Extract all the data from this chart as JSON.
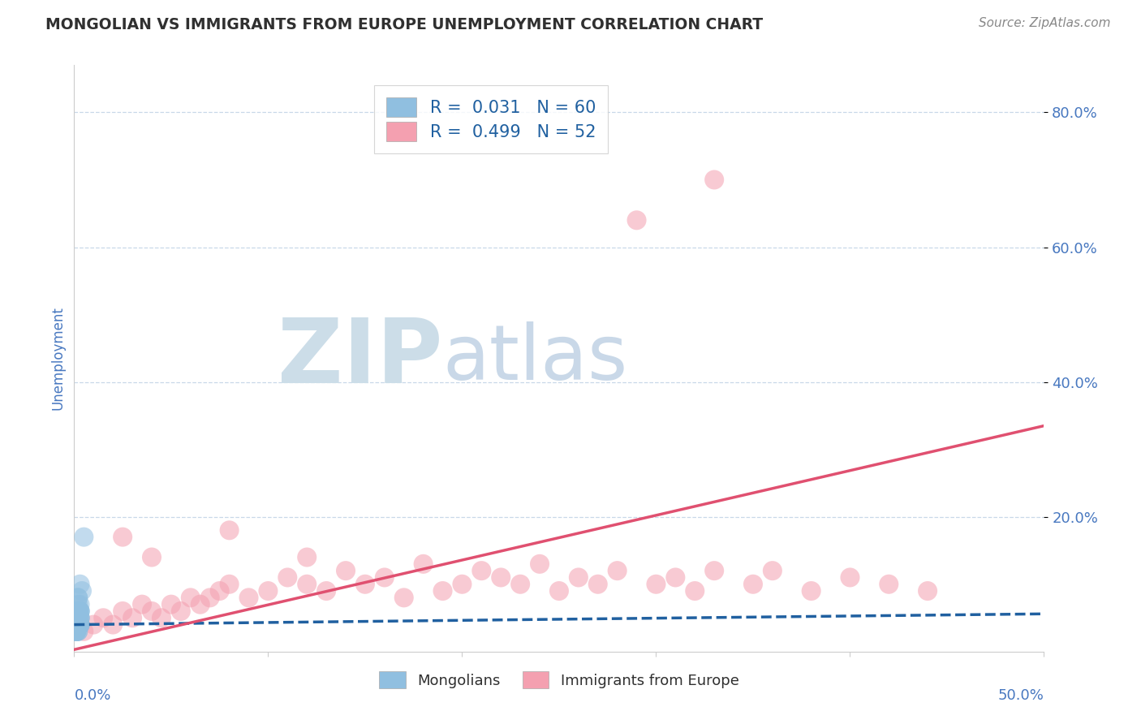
{
  "title": "MONGOLIAN VS IMMIGRANTS FROM EUROPE UNEMPLOYMENT CORRELATION CHART",
  "source": "Source: ZipAtlas.com",
  "ylabel": "Unemployment",
  "xlim": [
    0.0,
    0.5
  ],
  "ylim": [
    0.0,
    0.87
  ],
  "y_tick_values": [
    0.2,
    0.4,
    0.6,
    0.8
  ],
  "mongolian_color": "#90bfe0",
  "europe_color": "#f4a0b0",
  "mongolian_line_color": "#2060a0",
  "europe_line_color": "#e05070",
  "bg_color": "#ffffff",
  "grid_color": "#c8d8e8",
  "watermark_color": "#ccdde8",
  "title_color": "#303030",
  "axis_color": "#4878c0",
  "source_color": "#888888",
  "legend_text_color": "#2060a0",
  "mongolian_x": [
    0.001,
    0.002,
    0.001,
    0.003,
    0.001,
    0.002,
    0.001,
    0.002,
    0.003,
    0.001,
    0.002,
    0.001,
    0.002,
    0.003,
    0.001,
    0.002,
    0.001,
    0.003,
    0.002,
    0.001,
    0.002,
    0.001,
    0.002,
    0.003,
    0.001,
    0.002,
    0.001,
    0.002,
    0.001,
    0.002,
    0.003,
    0.001,
    0.002,
    0.001,
    0.003,
    0.002,
    0.001,
    0.002,
    0.003,
    0.001,
    0.002,
    0.001,
    0.003,
    0.002,
    0.001,
    0.002,
    0.001,
    0.003,
    0.002,
    0.001,
    0.004,
    0.003,
    0.002,
    0.001,
    0.003,
    0.002,
    0.001,
    0.005,
    0.002,
    0.001
  ],
  "mongolian_y": [
    0.04,
    0.05,
    0.03,
    0.06,
    0.04,
    0.05,
    0.03,
    0.04,
    0.06,
    0.04,
    0.05,
    0.03,
    0.04,
    0.05,
    0.04,
    0.06,
    0.05,
    0.04,
    0.03,
    0.05,
    0.04,
    0.03,
    0.06,
    0.04,
    0.05,
    0.04,
    0.03,
    0.05,
    0.04,
    0.06,
    0.05,
    0.04,
    0.03,
    0.05,
    0.04,
    0.06,
    0.03,
    0.04,
    0.05,
    0.04,
    0.07,
    0.05,
    0.06,
    0.04,
    0.03,
    0.08,
    0.05,
    0.04,
    0.06,
    0.03,
    0.09,
    0.07,
    0.06,
    0.04,
    0.1,
    0.08,
    0.05,
    0.17,
    0.06,
    0.04
  ],
  "europe_x": [
    0.005,
    0.01,
    0.015,
    0.02,
    0.025,
    0.03,
    0.035,
    0.04,
    0.045,
    0.05,
    0.055,
    0.06,
    0.065,
    0.07,
    0.075,
    0.08,
    0.09,
    0.1,
    0.11,
    0.12,
    0.13,
    0.14,
    0.15,
    0.16,
    0.17,
    0.18,
    0.19,
    0.2,
    0.21,
    0.22,
    0.23,
    0.24,
    0.25,
    0.26,
    0.27,
    0.28,
    0.3,
    0.31,
    0.32,
    0.33,
    0.35,
    0.36,
    0.38,
    0.4,
    0.42,
    0.44,
    0.025,
    0.04,
    0.08,
    0.12,
    0.29,
    0.33
  ],
  "europe_y": [
    0.03,
    0.04,
    0.05,
    0.04,
    0.06,
    0.05,
    0.07,
    0.06,
    0.05,
    0.07,
    0.06,
    0.08,
    0.07,
    0.08,
    0.09,
    0.1,
    0.08,
    0.09,
    0.11,
    0.1,
    0.09,
    0.12,
    0.1,
    0.11,
    0.08,
    0.13,
    0.09,
    0.1,
    0.12,
    0.11,
    0.1,
    0.13,
    0.09,
    0.11,
    0.1,
    0.12,
    0.1,
    0.11,
    0.09,
    0.12,
    0.1,
    0.12,
    0.09,
    0.11,
    0.1,
    0.09,
    0.17,
    0.14,
    0.18,
    0.14,
    0.64,
    0.7
  ],
  "europe_line_start_y": 0.003,
  "europe_line_end_y": 0.335,
  "mongolian_line_y": 0.048
}
